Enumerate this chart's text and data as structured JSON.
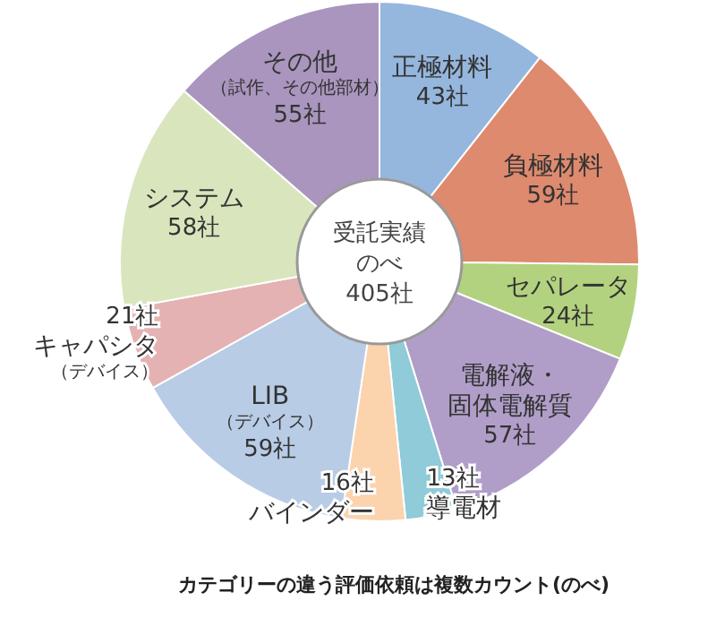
{
  "chart_data": {
    "type": "donut",
    "categories": [
      "正極材料",
      "負極材料",
      "セパレータ",
      "電解液・固体電解質",
      "導電材",
      "バインダー",
      "LIB（デバイス）",
      "キャパシタ（デバイス）",
      "システム",
      "その他（試作、その他部材）"
    ],
    "values": [
      43,
      59,
      24,
      57,
      13,
      16,
      59,
      21,
      58,
      55
    ],
    "value_labels": [
      "43社",
      "59社",
      "24社",
      "57社",
      "13社",
      "16社",
      "59社",
      "21社",
      "58社",
      "55社"
    ],
    "colors": [
      "#95b6dd",
      "#de8a6e",
      "#b3d27f",
      "#b09ec8",
      "#8fcbd8",
      "#fbd3ad",
      "#b8cce6",
      "#e4b2b2",
      "#d9e6bd",
      "#a995bd"
    ],
    "annotations": [
      "受託実績のべ405社",
      "カテゴリーの違う評価依頼は複数カウント(のべ)"
    ]
  }
}
